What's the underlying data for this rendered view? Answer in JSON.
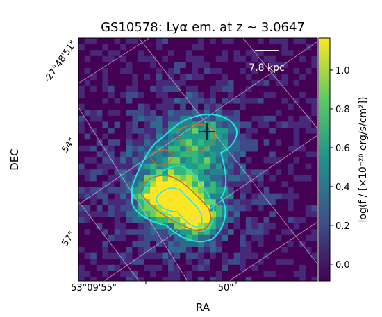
{
  "chart_data": {
    "type": "image",
    "title": "GS10578: Lyα em. at z ~ 3.0647",
    "x_label": "RA",
    "y_label": "DEC",
    "ra_ticks": [
      "53°09'55\"",
      "50\""
    ],
    "dec_ticks": [
      "-27°48'51\"",
      "54\"",
      "57\""
    ],
    "scale_bar": "7.8 kpc",
    "colorbar": {
      "label": "log(f / [×10⁻²⁰ erg/s/cm²])",
      "lim": [
        -0.086,
        1.164
      ],
      "ticks": [
        {
          "value": 0,
          "label": "0.0"
        },
        {
          "value": 0.2,
          "label": "0.2"
        },
        {
          "value": 0.4,
          "label": "0.4"
        },
        {
          "value": 0.6,
          "label": "0.6"
        },
        {
          "value": 0.8,
          "label": "0.8"
        },
        {
          "value": 1,
          "label": "1.0"
        }
      ]
    }
  }
}
